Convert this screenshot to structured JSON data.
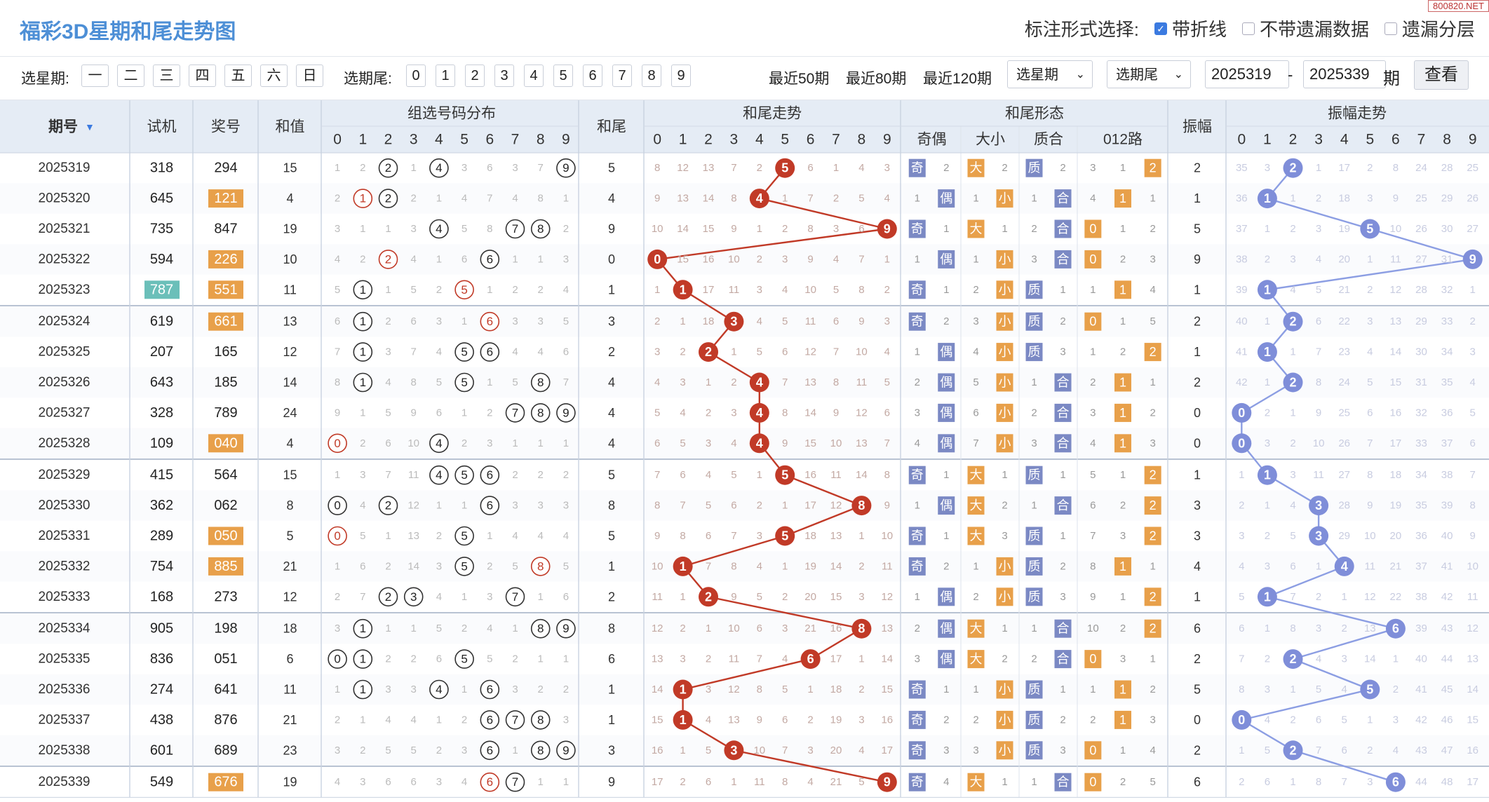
{
  "page": {
    "title": "福彩3D星期和尾走势图",
    "watermark": "800820.NET",
    "mark_label": "标注形式选择:",
    "mark_options": [
      "带折线",
      "不带遗漏数据",
      "遗漏分层"
    ],
    "mark_checked": [
      true,
      false,
      false
    ]
  },
  "filters": {
    "week_label": "选星期:",
    "weekdays": [
      "一",
      "二",
      "三",
      "四",
      "五",
      "六",
      "日"
    ],
    "tail_label": "选期尾:",
    "tails": [
      "0",
      "1",
      "2",
      "3",
      "4",
      "5",
      "6",
      "7",
      "8",
      "9"
    ],
    "ranges": [
      "最近50期",
      "最近80期",
      "最近120期"
    ],
    "week_select": "选星期",
    "tail_select": "选期尾",
    "from_issue": "2025319",
    "dash": "-",
    "to_issue": "2025339",
    "issue_unit": "期",
    "query_button": "查看"
  },
  "headers": {
    "issue": "期号",
    "trial": "试机",
    "prize": "奖号",
    "sum": "和值",
    "group_dist": "组选号码分布",
    "tail": "和尾",
    "tail_trend": "和尾走势",
    "tail_form": "和尾形态",
    "odd_even": "奇偶",
    "big_small": "大小",
    "prime_comp": "质合",
    "road": "012路",
    "amp": "振幅",
    "amp_trend": "振幅走势",
    "digits": [
      "0",
      "1",
      "2",
      "3",
      "4",
      "5",
      "6",
      "7",
      "8",
      "9"
    ]
  },
  "labels": {
    "odd": "奇",
    "even": "偶",
    "big": "大",
    "small": "小",
    "prime": "质",
    "composite": "合"
  },
  "colors": {
    "header_bg": "#e5ecf5",
    "accent": "#e8a04a",
    "teal": "#6bbfb9",
    "red": "#c13a27",
    "ball_blue": "#7f8ed9",
    "line_blue": "#8c9ee3"
  },
  "rows": [
    {
      "issue": "2025319",
      "trial": "318",
      "prize": "294",
      "sum": "15",
      "tail": "5",
      "amp": "2",
      "trial_hl": false,
      "prize_hl": false,
      "g": [
        "1",
        "2",
        "2",
        "1",
        "4",
        "3",
        "6",
        "3",
        "7",
        "9"
      ],
      "t": [
        "8",
        "12",
        "13",
        "7",
        "2",
        "5",
        "6",
        "1",
        "4",
        "3"
      ],
      "a": [
        "35",
        "3",
        "2",
        "1",
        "17",
        "2",
        "8",
        "24",
        "28",
        "25"
      ],
      "oe": [
        "奇",
        "2"
      ],
      "bs": [
        "大",
        "2"
      ],
      "pc": [
        "质",
        "2"
      ],
      "r": [
        "3",
        "1",
        "2"
      ]
    },
    {
      "issue": "2025320",
      "trial": "645",
      "prize": "121",
      "sum": "4",
      "tail": "4",
      "amp": "1",
      "trial_hl": false,
      "prize_hl": true,
      "g": [
        "2",
        "1",
        "2",
        "2",
        "1",
        "4",
        "7",
        "4",
        "8",
        "1"
      ],
      "t": [
        "9",
        "13",
        "14",
        "8",
        "4",
        "1",
        "7",
        "2",
        "5",
        "4"
      ],
      "a": [
        "36",
        "1",
        "1",
        "2",
        "18",
        "3",
        "9",
        "25",
        "29",
        "26"
      ],
      "oe": [
        "1",
        "偶"
      ],
      "bs": [
        "1",
        "小"
      ],
      "pc": [
        "1",
        "合"
      ],
      "r": [
        "4",
        "1",
        "1"
      ]
    },
    {
      "issue": "2025321",
      "trial": "735",
      "prize": "847",
      "sum": "19",
      "tail": "9",
      "amp": "5",
      "trial_hl": false,
      "prize_hl": false,
      "g": [
        "3",
        "1",
        "1",
        "3",
        "4",
        "5",
        "8",
        "7",
        "8",
        "2"
      ],
      "t": [
        "10",
        "14",
        "15",
        "9",
        "1",
        "2",
        "8",
        "3",
        "6",
        "9"
      ],
      "a": [
        "37",
        "1",
        "2",
        "3",
        "19",
        "5",
        "10",
        "26",
        "30",
        "27"
      ],
      "oe": [
        "奇",
        "1"
      ],
      "bs": [
        "大",
        "1"
      ],
      "pc": [
        "2",
        "合"
      ],
      "r": [
        "0",
        "1",
        "2"
      ]
    },
    {
      "issue": "2025322",
      "trial": "594",
      "prize": "226",
      "sum": "10",
      "tail": "0",
      "amp": "9",
      "trial_hl": false,
      "prize_hl": true,
      "g": [
        "4",
        "2",
        "2",
        "4",
        "1",
        "6",
        "6",
        "1",
        "1",
        "3"
      ],
      "t": [
        "0",
        "15",
        "16",
        "10",
        "2",
        "3",
        "9",
        "4",
        "7",
        "1"
      ],
      "a": [
        "38",
        "2",
        "3",
        "4",
        "20",
        "1",
        "11",
        "27",
        "31",
        "9"
      ],
      "oe": [
        "1",
        "偶"
      ],
      "bs": [
        "1",
        "小"
      ],
      "pc": [
        "3",
        "合"
      ],
      "r": [
        "0",
        "2",
        "3"
      ]
    },
    {
      "issue": "2025323",
      "trial": "787",
      "prize": "551",
      "sum": "11",
      "tail": "1",
      "amp": "1",
      "trial_hl": true,
      "prize_hl": true,
      "g": [
        "5",
        "1",
        "1",
        "5",
        "2",
        "5",
        "1",
        "2",
        "2",
        "4"
      ],
      "t": [
        "1",
        "1",
        "17",
        "11",
        "3",
        "4",
        "10",
        "5",
        "8",
        "2"
      ],
      "a": [
        "39",
        "1",
        "4",
        "5",
        "21",
        "2",
        "12",
        "28",
        "32",
        "1"
      ],
      "oe": [
        "奇",
        "1"
      ],
      "bs": [
        "2",
        "小"
      ],
      "pc": [
        "质",
        "1"
      ],
      "r": [
        "1",
        "1",
        "4"
      ]
    },
    {
      "issue": "2025324",
      "trial": "619",
      "prize": "661",
      "sum": "13",
      "tail": "3",
      "amp": "2",
      "trial_hl": false,
      "prize_hl": true,
      "g": [
        "6",
        "1",
        "2",
        "6",
        "3",
        "1",
        "6",
        "3",
        "3",
        "5"
      ],
      "t": [
        "2",
        "1",
        "18",
        "3",
        "4",
        "5",
        "11",
        "6",
        "9",
        "3"
      ],
      "a": [
        "40",
        "1",
        "2",
        "6",
        "22",
        "3",
        "13",
        "29",
        "33",
        "2"
      ],
      "oe": [
        "奇",
        "2"
      ],
      "bs": [
        "3",
        "小"
      ],
      "pc": [
        "质",
        "2"
      ],
      "r": [
        "0",
        "1",
        "5"
      ]
    },
    {
      "issue": "2025325",
      "trial": "207",
      "prize": "165",
      "sum": "12",
      "tail": "2",
      "amp": "1",
      "trial_hl": false,
      "prize_hl": false,
      "g": [
        "7",
        "1",
        "3",
        "7",
        "4",
        "5",
        "6",
        "4",
        "4",
        "6"
      ],
      "t": [
        "3",
        "2",
        "2",
        "1",
        "5",
        "6",
        "12",
        "7",
        "10",
        "4"
      ],
      "a": [
        "41",
        "1",
        "1",
        "7",
        "23",
        "4",
        "14",
        "30",
        "34",
        "3"
      ],
      "oe": [
        "1",
        "偶"
      ],
      "bs": [
        "4",
        "小"
      ],
      "pc": [
        "质",
        "3"
      ],
      "r": [
        "1",
        "2",
        "2"
      ]
    },
    {
      "issue": "2025326",
      "trial": "643",
      "prize": "185",
      "sum": "14",
      "tail": "4",
      "amp": "2",
      "trial_hl": false,
      "prize_hl": false,
      "g": [
        "8",
        "1",
        "4",
        "8",
        "5",
        "5",
        "1",
        "5",
        "8",
        "7"
      ],
      "t": [
        "4",
        "3",
        "1",
        "2",
        "4",
        "7",
        "13",
        "8",
        "11",
        "5"
      ],
      "a": [
        "42",
        "1",
        "2",
        "8",
        "24",
        "5",
        "15",
        "31",
        "35",
        "4"
      ],
      "oe": [
        "2",
        "偶"
      ],
      "bs": [
        "5",
        "小"
      ],
      "pc": [
        "1",
        "合"
      ],
      "r": [
        "2",
        "1",
        "1"
      ]
    },
    {
      "issue": "2025327",
      "trial": "328",
      "prize": "789",
      "sum": "24",
      "tail": "4",
      "amp": "0",
      "trial_hl": false,
      "prize_hl": false,
      "g": [
        "9",
        "1",
        "5",
        "9",
        "6",
        "1",
        "2",
        "7",
        "8",
        "9"
      ],
      "t": [
        "5",
        "4",
        "2",
        "3",
        "4",
        "8",
        "14",
        "9",
        "12",
        "6"
      ],
      "a": [
        "0",
        "2",
        "1",
        "9",
        "25",
        "6",
        "16",
        "32",
        "36",
        "5"
      ],
      "oe": [
        "3",
        "偶"
      ],
      "bs": [
        "6",
        "小"
      ],
      "pc": [
        "2",
        "合"
      ],
      "r": [
        "3",
        "1",
        "2"
      ]
    },
    {
      "issue": "2025328",
      "trial": "109",
      "prize": "040",
      "sum": "4",
      "tail": "4",
      "amp": "0",
      "trial_hl": false,
      "prize_hl": true,
      "g": [
        "0",
        "2",
        "6",
        "10",
        "4",
        "2",
        "3",
        "1",
        "1",
        "1"
      ],
      "t": [
        "6",
        "5",
        "3",
        "4",
        "4",
        "9",
        "15",
        "10",
        "13",
        "7"
      ],
      "a": [
        "0",
        "3",
        "2",
        "10",
        "26",
        "7",
        "17",
        "33",
        "37",
        "6"
      ],
      "oe": [
        "4",
        "偶"
      ],
      "bs": [
        "7",
        "小"
      ],
      "pc": [
        "3",
        "合"
      ],
      "r": [
        "4",
        "1",
        "3"
      ]
    },
    {
      "issue": "2025329",
      "trial": "415",
      "prize": "564",
      "sum": "15",
      "tail": "5",
      "amp": "1",
      "trial_hl": false,
      "prize_hl": false,
      "g": [
        "1",
        "3",
        "7",
        "11",
        "4",
        "5",
        "6",
        "2",
        "2",
        "2"
      ],
      "t": [
        "7",
        "6",
        "4",
        "5",
        "1",
        "5",
        "16",
        "11",
        "14",
        "8"
      ],
      "a": [
        "1",
        "1",
        "3",
        "11",
        "27",
        "8",
        "18",
        "34",
        "38",
        "7"
      ],
      "oe": [
        "奇",
        "1"
      ],
      "bs": [
        "大",
        "1"
      ],
      "pc": [
        "质",
        "1"
      ],
      "r": [
        "5",
        "1",
        "2"
      ]
    },
    {
      "issue": "2025330",
      "trial": "362",
      "prize": "062",
      "sum": "8",
      "tail": "8",
      "amp": "3",
      "trial_hl": false,
      "prize_hl": false,
      "g": [
        "0",
        "4",
        "2",
        "12",
        "1",
        "1",
        "6",
        "3",
        "3",
        "3"
      ],
      "t": [
        "8",
        "7",
        "5",
        "6",
        "2",
        "1",
        "17",
        "12",
        "8",
        "9"
      ],
      "a": [
        "2",
        "1",
        "4",
        "3",
        "28",
        "9",
        "19",
        "35",
        "39",
        "8"
      ],
      "oe": [
        "1",
        "偶"
      ],
      "bs": [
        "大",
        "2"
      ],
      "pc": [
        "1",
        "合"
      ],
      "r": [
        "6",
        "2",
        "2"
      ]
    },
    {
      "issue": "2025331",
      "trial": "289",
      "prize": "050",
      "sum": "5",
      "tail": "5",
      "amp": "3",
      "trial_hl": false,
      "prize_hl": true,
      "g": [
        "0",
        "5",
        "1",
        "13",
        "2",
        "5",
        "1",
        "4",
        "4",
        "4"
      ],
      "t": [
        "9",
        "8",
        "6",
        "7",
        "3",
        "5",
        "18",
        "13",
        "1",
        "10"
      ],
      "a": [
        "3",
        "2",
        "5",
        "3",
        "29",
        "10",
        "20",
        "36",
        "40",
        "9"
      ],
      "oe": [
        "奇",
        "1"
      ],
      "bs": [
        "大",
        "3"
      ],
      "pc": [
        "质",
        "1"
      ],
      "r": [
        "7",
        "3",
        "2"
      ]
    },
    {
      "issue": "2025332",
      "trial": "754",
      "prize": "885",
      "sum": "21",
      "tail": "1",
      "amp": "4",
      "trial_hl": false,
      "prize_hl": true,
      "g": [
        "1",
        "6",
        "2",
        "14",
        "3",
        "5",
        "2",
        "5",
        "8",
        "5"
      ],
      "t": [
        "10",
        "1",
        "7",
        "8",
        "4",
        "1",
        "19",
        "14",
        "2",
        "11"
      ],
      "a": [
        "4",
        "3",
        "6",
        "1",
        "4",
        "11",
        "21",
        "37",
        "41",
        "10"
      ],
      "oe": [
        "奇",
        "2"
      ],
      "bs": [
        "1",
        "小"
      ],
      "pc": [
        "质",
        "2"
      ],
      "r": [
        "8",
        "1",
        "1"
      ]
    },
    {
      "issue": "2025333",
      "trial": "168",
      "prize": "273",
      "sum": "12",
      "tail": "2",
      "amp": "1",
      "trial_hl": false,
      "prize_hl": false,
      "g": [
        "2",
        "7",
        "2",
        "3",
        "4",
        "1",
        "3",
        "7",
        "1",
        "6"
      ],
      "t": [
        "11",
        "1",
        "2",
        "9",
        "5",
        "2",
        "20",
        "15",
        "3",
        "12"
      ],
      "a": [
        "5",
        "1",
        "7",
        "2",
        "1",
        "12",
        "22",
        "38",
        "42",
        "11"
      ],
      "oe": [
        "1",
        "偶"
      ],
      "bs": [
        "2",
        "小"
      ],
      "pc": [
        "质",
        "3"
      ],
      "r": [
        "9",
        "1",
        "2"
      ]
    },
    {
      "issue": "2025334",
      "trial": "905",
      "prize": "198",
      "sum": "18",
      "tail": "8",
      "amp": "6",
      "trial_hl": false,
      "prize_hl": false,
      "g": [
        "3",
        "1",
        "1",
        "1",
        "5",
        "2",
        "4",
        "1",
        "8",
        "9"
      ],
      "t": [
        "12",
        "2",
        "1",
        "10",
        "6",
        "3",
        "21",
        "16",
        "8",
        "13"
      ],
      "a": [
        "6",
        "1",
        "8",
        "3",
        "2",
        "13",
        "6",
        "39",
        "43",
        "12"
      ],
      "oe": [
        "2",
        "偶"
      ],
      "bs": [
        "大",
        "1"
      ],
      "pc": [
        "1",
        "合"
      ],
      "r": [
        "10",
        "2",
        "2"
      ]
    },
    {
      "issue": "2025335",
      "trial": "836",
      "prize": "051",
      "sum": "6",
      "tail": "6",
      "amp": "2",
      "trial_hl": false,
      "prize_hl": false,
      "g": [
        "0",
        "1",
        "2",
        "2",
        "6",
        "5",
        "5",
        "2",
        "1",
        "1"
      ],
      "t": [
        "13",
        "3",
        "2",
        "11",
        "7",
        "4",
        "6",
        "17",
        "1",
        "14"
      ],
      "a": [
        "7",
        "2",
        "2",
        "4",
        "3",
        "14",
        "1",
        "40",
        "44",
        "13"
      ],
      "oe": [
        "3",
        "偶"
      ],
      "bs": [
        "大",
        "2"
      ],
      "pc": [
        "2",
        "合"
      ],
      "r": [
        "0",
        "3",
        "1"
      ]
    },
    {
      "issue": "2025336",
      "trial": "274",
      "prize": "641",
      "sum": "11",
      "tail": "1",
      "amp": "5",
      "trial_hl": false,
      "prize_hl": false,
      "g": [
        "1",
        "1",
        "3",
        "3",
        "4",
        "1",
        "6",
        "3",
        "2",
        "2"
      ],
      "t": [
        "14",
        "1",
        "3",
        "12",
        "8",
        "5",
        "1",
        "18",
        "2",
        "15"
      ],
      "a": [
        "8",
        "3",
        "1",
        "5",
        "4",
        "5",
        "2",
        "41",
        "45",
        "14"
      ],
      "oe": [
        "奇",
        "1"
      ],
      "bs": [
        "1",
        "小"
      ],
      "pc": [
        "质",
        "1"
      ],
      "r": [
        "1",
        "1",
        "2"
      ]
    },
    {
      "issue": "2025337",
      "trial": "438",
      "prize": "876",
      "sum": "21",
      "tail": "1",
      "amp": "0",
      "trial_hl": false,
      "prize_hl": false,
      "g": [
        "2",
        "1",
        "4",
        "4",
        "1",
        "2",
        "6",
        "7",
        "8",
        "3"
      ],
      "t": [
        "15",
        "1",
        "4",
        "13",
        "9",
        "6",
        "2",
        "19",
        "3",
        "16"
      ],
      "a": [
        "0",
        "4",
        "2",
        "6",
        "5",
        "1",
        "3",
        "42",
        "46",
        "15"
      ],
      "oe": [
        "奇",
        "2"
      ],
      "bs": [
        "2",
        "小"
      ],
      "pc": [
        "质",
        "2"
      ],
      "r": [
        "2",
        "1",
        "3"
      ]
    },
    {
      "issue": "2025338",
      "trial": "601",
      "prize": "689",
      "sum": "23",
      "tail": "3",
      "amp": "2",
      "trial_hl": false,
      "prize_hl": false,
      "g": [
        "3",
        "2",
        "5",
        "5",
        "2",
        "3",
        "6",
        "1",
        "8",
        "9"
      ],
      "t": [
        "16",
        "1",
        "5",
        "3",
        "10",
        "7",
        "3",
        "20",
        "4",
        "17"
      ],
      "a": [
        "1",
        "5",
        "2",
        "7",
        "6",
        "2",
        "4",
        "43",
        "47",
        "16"
      ],
      "oe": [
        "奇",
        "3"
      ],
      "bs": [
        "3",
        "小"
      ],
      "pc": [
        "质",
        "3"
      ],
      "r": [
        "0",
        "1",
        "4"
      ]
    },
    {
      "issue": "2025339",
      "trial": "549",
      "prize": "676",
      "sum": "19",
      "tail": "9",
      "amp": "6",
      "trial_hl": false,
      "prize_hl": true,
      "g": [
        "4",
        "3",
        "6",
        "6",
        "3",
        "4",
        "6",
        "7",
        "1",
        "1"
      ],
      "t": [
        "17",
        "2",
        "6",
        "1",
        "11",
        "8",
        "4",
        "21",
        "5",
        "9"
      ],
      "a": [
        "2",
        "6",
        "1",
        "8",
        "7",
        "3",
        "6",
        "44",
        "48",
        "17"
      ],
      "oe": [
        "奇",
        "4"
      ],
      "bs": [
        "大",
        "1"
      ],
      "pc": [
        "1",
        "合"
      ],
      "r": [
        "0",
        "2",
        "5"
      ]
    }
  ]
}
